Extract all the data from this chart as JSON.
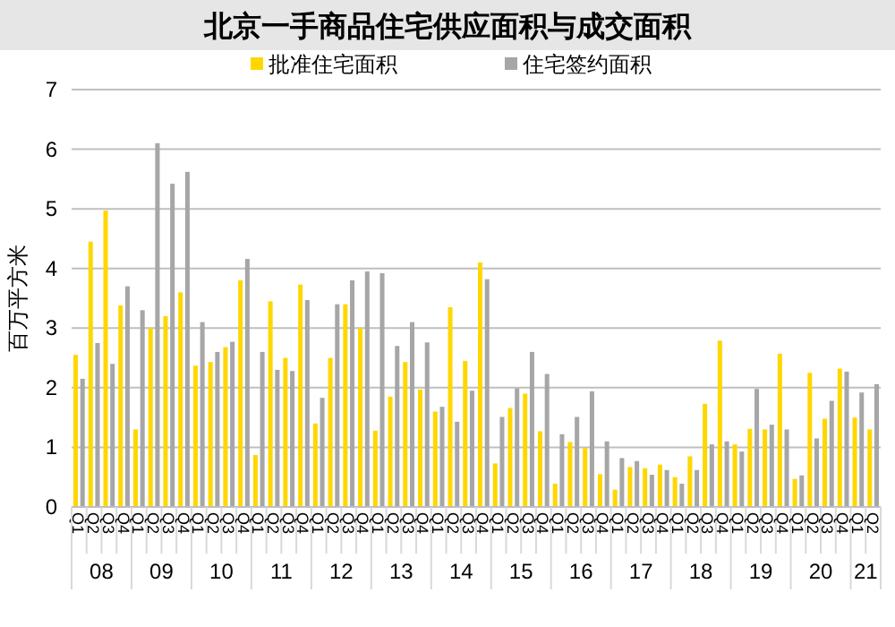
{
  "chart_data": {
    "type": "bar",
    "title": "北京一手商品住宅供应面积与成交面积",
    "ylabel": "百万平方米",
    "categories": [
      "Q1",
      "Q2",
      "Q3",
      "Q4",
      "Q1",
      "Q2",
      "Q3",
      "Q4",
      "Q1",
      "Q2",
      "Q3",
      "Q4",
      "Q1",
      "Q2",
      "Q3",
      "Q4",
      "Q1",
      "Q2",
      "Q3",
      "Q4",
      "Q1",
      "Q2",
      "Q3",
      "Q4",
      "Q1",
      "Q2",
      "Q3",
      "Q4",
      "Q1",
      "Q2",
      "Q3",
      "Q4",
      "Q1",
      "Q2",
      "Q3",
      "Q4",
      "Q1",
      "Q2",
      "Q3",
      "Q4",
      "Q1",
      "Q2",
      "Q3",
      "Q4",
      "Q1",
      "Q2",
      "Q3",
      "Q4",
      "Q1",
      "Q2",
      "Q3",
      "Q4",
      "Q1",
      "Q2"
    ],
    "series": [
      {
        "name": "批准住宅面积",
        "color": "#ffd700",
        "values": [
          2.55,
          4.45,
          4.97,
          3.38,
          1.3,
          3.0,
          3.2,
          3.6,
          2.37,
          2.43,
          2.68,
          3.8,
          0.87,
          3.45,
          2.5,
          3.73,
          1.4,
          2.5,
          3.4,
          3.0,
          1.28,
          1.85,
          2.43,
          1.97,
          1.6,
          3.35,
          2.45,
          4.1,
          0.73,
          1.66,
          1.9,
          1.27,
          0.39,
          1.09,
          0.99,
          0.55,
          0.29,
          0.67,
          0.65,
          0.71,
          0.5,
          0.85,
          1.73,
          2.79,
          1.05,
          1.31,
          1.3,
          2.57,
          0.47,
          2.25,
          1.48,
          2.32,
          1.5,
          1.3
        ]
      },
      {
        "name": "住宅签约面积",
        "color": "#a6a6a6",
        "values": [
          2.15,
          2.75,
          2.4,
          3.7,
          3.3,
          6.1,
          5.42,
          5.62,
          3.1,
          2.6,
          2.77,
          4.16,
          2.6,
          2.3,
          2.28,
          3.47,
          1.83,
          3.4,
          3.8,
          3.95,
          3.92,
          2.7,
          3.1,
          2.76,
          1.68,
          1.43,
          1.95,
          3.82,
          1.51,
          1.99,
          2.6,
          2.23,
          1.22,
          1.51,
          1.94,
          1.1,
          0.82,
          0.77,
          0.54,
          0.62,
          0.39,
          0.62,
          1.05,
          1.1,
          0.93,
          1.98,
          1.38,
          1.3,
          0.53,
          1.15,
          1.78,
          2.27,
          1.92,
          2.06
        ]
      }
    ],
    "annotations": [
      "08",
      "09",
      "10",
      "11",
      "12",
      "13",
      "14",
      "15",
      "16",
      "17",
      "18",
      "19",
      "20",
      "21"
    ],
    "ylim": [
      0,
      7
    ],
    "yticks": [
      0,
      1,
      2,
      3,
      4,
      5,
      6,
      7
    ],
    "grid": "y",
    "legend": "top"
  }
}
